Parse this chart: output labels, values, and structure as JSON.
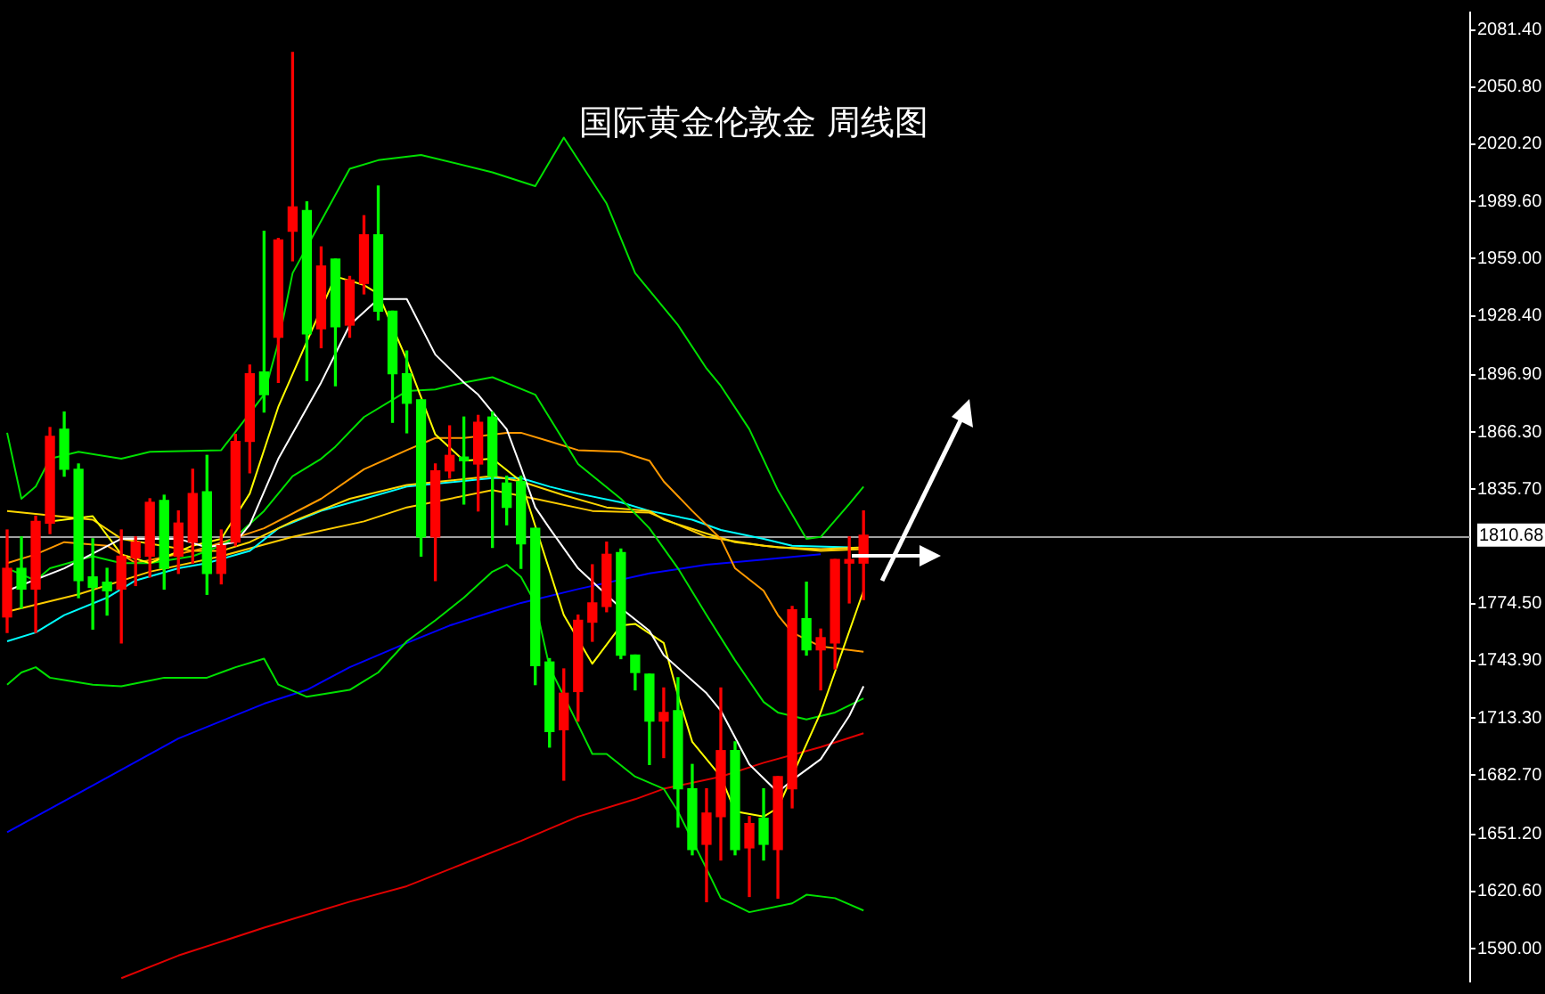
{
  "chart_data": {
    "type": "candlestick",
    "title": "国际黄金伦敦金 周线图",
    "categories": [
      null,
      null,
      null,
      null,
      null,
      null,
      null,
      null,
      null,
      null,
      null,
      null,
      null,
      null,
      null,
      null,
      null,
      null,
      null,
      null,
      null,
      null,
      null,
      null,
      null,
      null,
      null,
      null,
      null,
      null,
      null,
      null,
      null,
      null,
      null,
      null,
      null,
      null,
      null,
      null,
      null,
      null,
      null,
      null,
      null,
      null,
      null,
      null,
      null,
      null,
      null,
      null,
      null,
      null,
      null,
      null,
      null,
      null,
      null,
      null,
      null
    ],
    "ohlc": [
      [
        1767.4,
        1813.9,
        1759.1,
        1793.4
      ],
      [
        1793.4,
        1810.2,
        1772.1,
        1782.3
      ],
      [
        1782.3,
        1821.3,
        1759.1,
        1818.5
      ],
      [
        1817.6,
        1868.7,
        1812.0,
        1864.0
      ],
      [
        1867.8,
        1877.0,
        1842.7,
        1846.4
      ],
      [
        1846.4,
        1849.2,
        1777.7,
        1786.9
      ],
      [
        1788.8,
        1809.2,
        1760.9,
        1783.2
      ],
      [
        1786.0,
        1793.4,
        1768.4,
        1781.4
      ],
      [
        1782.3,
        1813.9,
        1753.5,
        1799.9
      ],
      [
        1799.0,
        1810.2,
        1784.2,
        1807.4
      ],
      [
        1799.9,
        1830.6,
        1788.8,
        1828.7
      ],
      [
        1829.7,
        1832.5,
        1782.3,
        1793.4
      ],
      [
        1799.9,
        1824.1,
        1790.7,
        1817.6
      ],
      [
        1807.4,
        1846.4,
        1796.2,
        1833.4
      ],
      [
        1834.3,
        1853.8,
        1779.5,
        1790.7
      ],
      [
        1790.7,
        1813.9,
        1785.1,
        1805.5
      ],
      [
        1807.4,
        1865.0,
        1805.5,
        1861.3
      ],
      [
        1861.3,
        1902.1,
        1844.5,
        1897.5
      ],
      [
        1898.4,
        1973.7,
        1877.0,
        1886.3
      ],
      [
        1917.0,
        1969.9,
        1892.8,
        1969.0
      ],
      [
        1973.7,
        2069.3,
        1957.9,
        1986.7
      ],
      [
        1984.8,
        1989.4,
        1893.8,
        1918.8
      ],
      [
        1921.6,
        1965.3,
        1911.4,
        1955.1
      ],
      [
        1958.8,
        1958.8,
        1891.0,
        1922.6
      ],
      [
        1923.5,
        1949.5,
        1917.0,
        1947.6
      ],
      [
        1945.8,
        1982.0,
        1940.2,
        1971.8
      ],
      [
        1971.8,
        1997.8,
        1926.3,
        1930.9
      ],
      [
        1930.9,
        1930.9,
        1871.5,
        1897.5
      ],
      [
        1897.5,
        1909.6,
        1865.9,
        1881.7
      ],
      [
        1883.5,
        1883.5,
        1799.9,
        1810.2
      ],
      [
        1810.2,
        1849.2,
        1786.9,
        1845.5
      ],
      [
        1845.5,
        1869.6,
        1841.7,
        1853.8
      ],
      [
        1852.9,
        1874.3,
        1827.8,
        1851.0
      ],
      [
        1849.2,
        1875.2,
        1824.1,
        1871.5
      ],
      [
        1874.3,
        1877.0,
        1804.6,
        1842.7
      ],
      [
        1839.0,
        1842.7,
        1816.7,
        1826.0
      ],
      [
        1839.9,
        1842.7,
        1793.4,
        1806.5
      ],
      [
        1814.8,
        1814.8,
        1731.2,
        1741.4
      ],
      [
        1743.3,
        1745.1,
        1697.8,
        1706.1
      ],
      [
        1707.1,
        1739.6,
        1680.1,
        1726.6
      ],
      [
        1727.5,
        1768.4,
        1711.7,
        1765.6
      ],
      [
        1764.6,
        1795.3,
        1754.4,
        1774.9
      ],
      [
        1773.0,
        1807.4,
        1770.2,
        1800.9
      ],
      [
        1801.8,
        1803.7,
        1745.1,
        1747.0
      ],
      [
        1747.0,
        1747.0,
        1728.4,
        1737.7
      ],
      [
        1736.8,
        1736.8,
        1688.5,
        1711.7
      ],
      [
        1711.7,
        1729.4,
        1692.2,
        1716.3
      ],
      [
        1717.3,
        1734.9,
        1655.0,
        1675.5
      ],
      [
        1675.5,
        1688.5,
        1640.2,
        1643.0
      ],
      [
        1645.8,
        1675.5,
        1615.1,
        1662.5
      ],
      [
        1660.6,
        1729.4,
        1637.4,
        1695.9
      ],
      [
        1695.9,
        1700.6,
        1640.2,
        1643.0
      ],
      [
        1643.9,
        1660.6,
        1617.9,
        1656.9
      ],
      [
        1659.7,
        1675.5,
        1637.4,
        1645.8
      ],
      [
        1643.0,
        1682.0,
        1617.0,
        1682.0
      ],
      [
        1675.5,
        1773.0,
        1665.3,
        1771.2
      ],
      [
        1766.5,
        1786.0,
        1747.0,
        1749.8
      ],
      [
        1749.8,
        1760.9,
        1728.4,
        1756.3
      ],
      [
        1753.5,
        1798.1,
        1739.6,
        1798.1
      ],
      [
        1796.2,
        1810.2,
        1774.9,
        1798.1
      ],
      [
        1796.2,
        1824.1,
        1776.7,
        1811.1
      ]
    ],
    "series": [
      {
        "type": "line",
        "color": "#ffffff",
        "values": [
          1781.4,
          null,
          null,
          null,
          1793.4,
          null,
          null,
          null,
          1809.2,
          null,
          null,
          null,
          1809.2,
          null,
          1804.6,
          null,
          1807.4,
          1816.7,
          null,
          1852.0,
          null,
          null,
          1892.8,
          null,
          1923.5,
          null,
          1937.4,
          null,
          1937.4,
          null,
          1907.7,
          null,
          1892.8,
          1886.3,
          1877.0,
          1867.8,
          1847.3,
          1826.0,
          1814.8,
          null,
          1793.4,
          null,
          null,
          1772.1,
          null,
          1760.0,
          1747.0,
          null,
          null,
          1726.6,
          1717.3,
          null,
          1688.5,
          null,
          1673.6,
          1680.1,
          null,
          1691.3,
          null,
          1714.5,
          1730.3
        ]
      },
      {
        "type": "line",
        "color": "#ffff00",
        "values": [
          null,
          null,
          null,
          1818.5,
          null,
          null,
          1821.3,
          null,
          1800.9,
          null,
          1796.2,
          null,
          null,
          1805.5,
          null,
          1809.2,
          null,
          1833.4,
          null,
          1879.8,
          null,
          null,
          null,
          1949.5,
          null,
          1944.9,
          1940.2,
          null,
          1904.9,
          null,
          1865.0,
          null,
          1851.0,
          null,
          1852.0,
          null,
          1839.9,
          null,
          null,
          1768.4,
          null,
          1742.4,
          null,
          1762.8,
          1763.7,
          null,
          1753.5,
          1725.6,
          1700.6,
          null,
          1682.0,
          1663.4,
          null,
          1660.6,
          1665.3,
          null,
          null,
          1716.3,
          null,
          null,
          1781.4
        ]
      },
      {
        "type": "line",
        "color": "#00e000",
        "values": [
          1865.9,
          1830.6,
          1837.1,
          1852.0,
          null,
          1855.7,
          null,
          null,
          1852.0,
          null,
          1855.7,
          null,
          null,
          null,
          null,
          1856.6,
          null,
          null,
          1886.3,
          1914.2,
          1951.3,
          null,
          1979.2,
          null,
          2007.1,
          null,
          2011.7,
          null,
          null,
          2014.5,
          null,
          null,
          null,
          null,
          2005.2,
          null,
          null,
          1997.8,
          null,
          2023.8,
          null,
          null,
          1988.5,
          null,
          1951.3,
          null,
          null,
          1923.5,
          null,
          1900.3,
          1891.0,
          null,
          1867.8,
          null,
          1835.2,
          null,
          1809.2,
          1810.2,
          null,
          1827.8,
          1837.1
        ]
      },
      {
        "type": "line",
        "color": "#00e000",
        "values": [
          1793.4,
          null,
          1786.9,
          1793.4,
          null,
          null,
          1799.9,
          null,
          1796.2,
          null,
          1796.2,
          null,
          null,
          1799.9,
          null,
          1805.5,
          1810.2,
          null,
          1824.1,
          null,
          1842.7,
          null,
          1852.0,
          1858.5,
          null,
          1874.3,
          null,
          1883.5,
          1888.2,
          null,
          1889.1,
          null,
          1892.8,
          null,
          1895.6,
          null,
          null,
          1886.3,
          null,
          null,
          1849.2,
          null,
          null,
          1830.6,
          null,
          1814.8,
          null,
          1793.4,
          null,
          1768.4,
          null,
          1744.2,
          null,
          1721.9,
          1716.3,
          null,
          1712.6,
          null,
          1716.3,
          null,
          1723.8
        ]
      },
      {
        "type": "line",
        "color": "#00e000",
        "values": [
          1731.2,
          1737.7,
          1740.5,
          1734.9,
          null,
          null,
          1731.2,
          null,
          1730.3,
          null,
          null,
          1734.9,
          null,
          null,
          1734.9,
          null,
          1740.5,
          null,
          1745.1,
          1731.2,
          null,
          1724.7,
          null,
          null,
          1728.4,
          null,
          1737.7,
          null,
          1754.4,
          null,
          1765.6,
          null,
          1777.7,
          null,
          1791.6,
          1795.3,
          1788.8,
          1774.9,
          1740.5,
          null,
          1709.8,
          1694.1,
          1694.1,
          null,
          1682.0,
          null,
          1675.5,
          1663.4,
          null,
          1632.7,
          1617.0,
          null,
          1609.5,
          null,
          null,
          1614.2,
          1618.8,
          null,
          1617.0,
          null,
          1610.4
        ]
      },
      {
        "type": "line",
        "color": "#ff9900",
        "values": [
          1796.2,
          null,
          1800.9,
          null,
          1807.4,
          null,
          null,
          1805.5,
          null,
          1796.2,
          null,
          null,
          null,
          1802.7,
          1804.6,
          null,
          null,
          null,
          1814.8,
          null,
          null,
          null,
          1830.6,
          null,
          null,
          1846.4,
          null,
          null,
          1856.6,
          null,
          1863.1,
          null,
          1863.1,
          null,
          null,
          1865.9,
          1865.9,
          null,
          1861.3,
          null,
          1856.6,
          null,
          null,
          1855.7,
          null,
          1851.0,
          1839.9,
          null,
          1824.1,
          null,
          1809.2,
          1793.4,
          null,
          1781.4,
          1768.4,
          1759.1,
          null,
          1751.6,
          null,
          null,
          1748.8
        ]
      },
      {
        "type": "line",
        "color": "#ffd700",
        "values": [
          1824.1,
          null,
          null,
          null,
          null,
          null,
          1819.4,
          null,
          1809.2,
          null,
          null,
          null,
          null,
          1802.7,
          null,
          1802.7,
          null,
          1807.4,
          null,
          null,
          1818.5,
          null,
          null,
          null,
          1830.6,
          null,
          null,
          null,
          1838.0,
          null,
          null,
          null,
          null,
          null,
          1842.7,
          null,
          1839.9,
          null,
          null,
          1832.5,
          null,
          null,
          1826.0,
          null,
          null,
          1824.1,
          1819.4,
          null,
          null,
          1812.0,
          null,
          1807.4,
          null,
          null,
          1804.6,
          null,
          null,
          1803.7,
          null,
          null,
          1804.6
        ]
      },
      {
        "type": "line",
        "color": "#00ffff",
        "values": [
          1754.4,
          null,
          1759.1,
          null,
          1768.4,
          null,
          null,
          1777.7,
          null,
          1786.9,
          null,
          null,
          1793.4,
          null,
          1796.2,
          null,
          null,
          1802.7,
          null,
          1814.8,
          null,
          null,
          1824.1,
          null,
          null,
          1830.6,
          null,
          null,
          1837.1,
          null,
          null,
          null,
          null,
          null,
          1841.7,
          null,
          1841.7,
          null,
          1837.1,
          null,
          1833.4,
          null,
          null,
          1828.7,
          null,
          1824.1,
          null,
          null,
          1819.4,
          null,
          1813.9,
          null,
          null,
          1809.2,
          null,
          1805.5,
          null,
          null,
          null,
          1804.6,
          null
        ]
      },
      {
        "type": "line",
        "color": "#ffcc00",
        "values": [
          1770.2,
          null,
          null,
          null,
          null,
          1779.5,
          null,
          null,
          null,
          null,
          1791.6,
          null,
          null,
          null,
          null,
          1799.9,
          null,
          null,
          null,
          null,
          1810.2,
          null,
          null,
          null,
          null,
          1818.5,
          null,
          null,
          1826.0,
          null,
          null,
          null,
          null,
          null,
          1835.2,
          null,
          null,
          1830.6,
          null,
          null,
          null,
          1824.1,
          null,
          null,
          null,
          1823.2,
          null,
          null,
          null,
          1810.2,
          null,
          null,
          null,
          1805.5,
          null,
          null,
          null,
          1802.7,
          null,
          null,
          1803.7
        ]
      },
      {
        "type": "line",
        "color": "#0000ff",
        "values": [
          1652.3,
          null,
          null,
          null,
          null,
          null,
          1677.3,
          null,
          null,
          null,
          null,
          null,
          1702.4,
          null,
          null,
          null,
          null,
          null,
          1721.0,
          null,
          null,
          1728.4,
          null,
          null,
          1740.5,
          null,
          null,
          null,
          1753.5,
          null,
          null,
          1762.8,
          null,
          null,
          1770.2,
          null,
          1774.9,
          null,
          null,
          null,
          1782.3,
          null,
          null,
          null,
          null,
          1790.7,
          null,
          null,
          null,
          1795.3,
          null,
          null,
          null,
          1798.1,
          null,
          null,
          null,
          1800.9,
          null,
          null,
          null
        ]
      },
      {
        "type": "line",
        "color": "#e00000",
        "values": [
          null,
          null,
          null,
          null,
          null,
          null,
          null,
          null,
          1574.2,
          null,
          null,
          null,
          1586.3,
          null,
          null,
          null,
          null,
          null,
          1601.2,
          null,
          null,
          null,
          null,
          null,
          1615.1,
          null,
          null,
          null,
          1623.4,
          null,
          null,
          null,
          1635.5,
          null,
          null,
          null,
          1647.6,
          null,
          null,
          null,
          1660.6,
          null,
          null,
          null,
          1669.9,
          null,
          1675.5,
          null,
          null,
          null,
          1682.0,
          null,
          null,
          1689.4,
          null,
          null,
          null,
          1697.8,
          null,
          null,
          1705.2
        ]
      }
    ],
    "ylim": [
      1572.4,
      2090.7
    ],
    "yticks": [
      {
        "value": 2081.4,
        "label": "2081.40"
      },
      {
        "value": 2050.8,
        "label": "2050.80"
      },
      {
        "value": 2020.2,
        "label": "2020.20"
      },
      {
        "value": 1989.6,
        "label": "1989.60"
      },
      {
        "value": 1959.0,
        "label": "1959.00"
      },
      {
        "value": 1928.4,
        "label": "1928.40"
      },
      {
        "value": 1896.9,
        "label": "1896.90"
      },
      {
        "value": 1866.3,
        "label": "1866.30"
      },
      {
        "value": 1835.7,
        "label": "1835.70"
      },
      {
        "value": 1774.5,
        "label": "1774.50"
      },
      {
        "value": 1743.9,
        "label": "1743.90"
      },
      {
        "value": 1713.3,
        "label": "1713.30"
      },
      {
        "value": 1682.7,
        "label": "1682.70"
      },
      {
        "value": 1651.2,
        "label": "1651.20"
      },
      {
        "value": 1620.6,
        "label": "1620.60"
      },
      {
        "value": 1590.0,
        "label": "1590.00"
      }
    ],
    "ref_lines": [
      {
        "axis": "y",
        "value": 1810.68,
        "label": "1810.68",
        "color": "#a0a0a0"
      }
    ],
    "tick_labels": "y"
  }
}
